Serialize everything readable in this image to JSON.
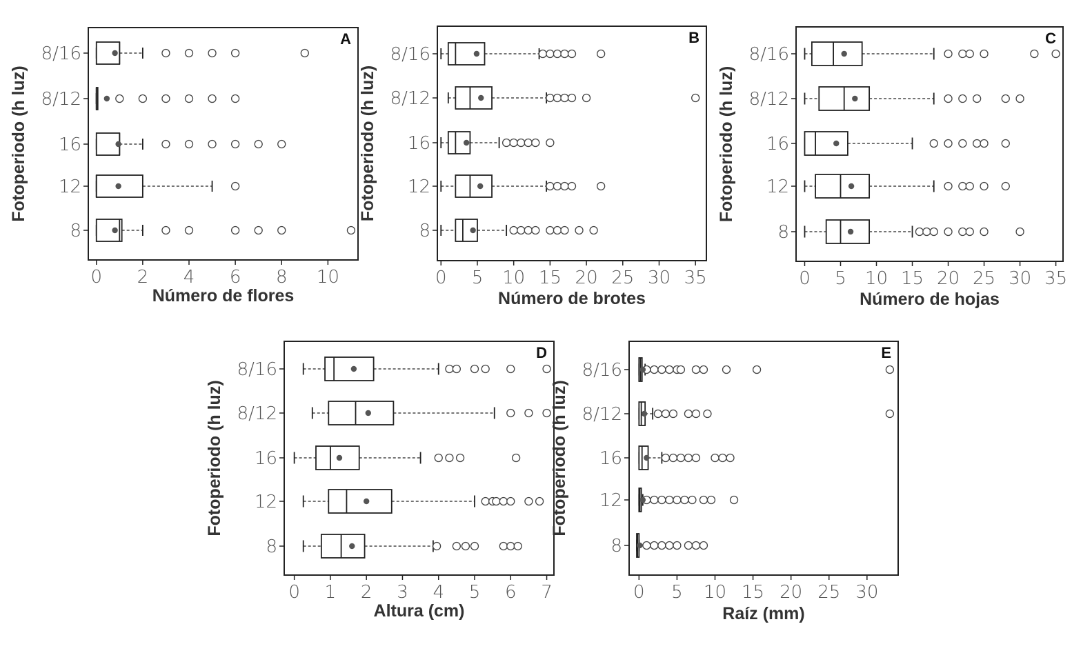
{
  "colors": {
    "frame": "#222222",
    "mean_dot": "#555555",
    "text": "#333333"
  },
  "chart_data": [
    {
      "type": "boxplot",
      "orientation": "horizontal",
      "panel": "A",
      "xlabel": "Número de flores",
      "ylabel": "Fotoperiodo  (h luz)",
      "xlim": [
        -0.35,
        11.3
      ],
      "xticks": [
        0,
        2,
        4,
        6,
        8,
        10
      ],
      "categories": [
        "8/16",
        "8/12",
        "16",
        "12",
        "8"
      ],
      "series": [
        {
          "category": "8/16",
          "whisker_low": 0,
          "q1": 0,
          "median": 1,
          "q3": 1,
          "whisker_high": 2,
          "mean": 0.8,
          "outliers": [
            3,
            4,
            5,
            6,
            9
          ]
        },
        {
          "category": "8/12",
          "whisker_low": 0,
          "q1": 0,
          "median": 0,
          "q3": 0,
          "whisker_high": 0,
          "mean": 0.45,
          "outliers": [
            1,
            2,
            3,
            4,
            5,
            6
          ]
        },
        {
          "category": "16",
          "whisker_low": 0,
          "q1": 0,
          "median": 1,
          "q3": 1,
          "whisker_high": 2,
          "mean": 0.95,
          "outliers": [
            3,
            4,
            5,
            6,
            7,
            8
          ]
        },
        {
          "category": "12",
          "whisker_low": 0,
          "q1": 0,
          "median": 0,
          "q3": 2,
          "whisker_high": 5,
          "mean": 0.95,
          "outliers": [
            6
          ]
        },
        {
          "category": "8",
          "whisker_low": 0,
          "q1": 0,
          "median": 1,
          "q3": 1.1,
          "whisker_high": 2,
          "mean": 0.8,
          "outliers": [
            3,
            4,
            6,
            7,
            8,
            11
          ]
        }
      ]
    },
    {
      "type": "boxplot",
      "orientation": "horizontal",
      "panel": "B",
      "xlabel": "Número de brotes",
      "ylabel": "Fotoperiodo  (h luz)",
      "xlim": [
        -0.5,
        36.5
      ],
      "xticks": [
        0,
        5,
        10,
        15,
        20,
        25,
        30,
        35
      ],
      "categories": [
        "8/16",
        "8/12",
        "16",
        "12",
        "8"
      ],
      "series": [
        {
          "category": "8/16",
          "whisker_low": 0,
          "q1": 1,
          "median": 2,
          "q3": 6,
          "whisker_high": 13.5,
          "mean": 4.9,
          "outliers": [
            14,
            15,
            16,
            17,
            18,
            22
          ]
        },
        {
          "category": "8/12",
          "whisker_low": 1,
          "q1": 2,
          "median": 4,
          "q3": 7,
          "whisker_high": 14.5,
          "mean": 5.5,
          "outliers": [
            15,
            16,
            17,
            18,
            20,
            35
          ]
        },
        {
          "category": "16",
          "whisker_low": 0,
          "q1": 1,
          "median": 2,
          "q3": 4,
          "whisker_high": 8,
          "mean": 3.5,
          "outliers": [
            9,
            10,
            11,
            12,
            13,
            15
          ]
        },
        {
          "category": "12",
          "whisker_low": 0,
          "q1": 2,
          "median": 4,
          "q3": 7,
          "whisker_high": 14.5,
          "mean": 5.4,
          "outliers": [
            15,
            16,
            17,
            18,
            22
          ]
        },
        {
          "category": "8",
          "whisker_low": 0,
          "q1": 2,
          "median": 3,
          "q3": 5,
          "whisker_high": 9,
          "mean": 4.4,
          "outliers": [
            10,
            11,
            12,
            13,
            15,
            16,
            17,
            19,
            21
          ]
        }
      ]
    },
    {
      "type": "boxplot",
      "orientation": "horizontal",
      "panel": "C",
      "xlabel": "Número de hojas",
      "ylabel": "Fotoperiodo  (h luz)",
      "xlim": [
        -1.2,
        36
      ],
      "xticks": [
        0,
        5,
        10,
        15,
        20,
        25,
        30,
        35
      ],
      "categories": [
        "8/16",
        "8/12",
        "16",
        "12",
        "8"
      ],
      "series": [
        {
          "category": "8/16",
          "whisker_low": 0,
          "q1": 1,
          "median": 4,
          "q3": 8,
          "whisker_high": 18,
          "mean": 5.5,
          "outliers": [
            20,
            22,
            23,
            25,
            32,
            35
          ]
        },
        {
          "category": "8/12",
          "whisker_low": 0,
          "q1": 2,
          "median": 5.5,
          "q3": 9,
          "whisker_high": 18,
          "mean": 7,
          "outliers": [
            20,
            22,
            24,
            28,
            30
          ]
        },
        {
          "category": "16",
          "whisker_low": 0,
          "q1": 0,
          "median": 1.5,
          "q3": 6,
          "whisker_high": 15,
          "mean": 4.4,
          "outliers": [
            18,
            20,
            22,
            24,
            25,
            28
          ]
        },
        {
          "category": "12",
          "whisker_low": 0,
          "q1": 1.5,
          "median": 5,
          "q3": 9,
          "whisker_high": 18,
          "mean": 6.5,
          "outliers": [
            20,
            22,
            23,
            25,
            28
          ]
        },
        {
          "category": "8",
          "whisker_low": 0,
          "q1": 3,
          "median": 5,
          "q3": 9,
          "whisker_high": 15,
          "mean": 6.4,
          "outliers": [
            16,
            17,
            18,
            20,
            22,
            23,
            25,
            30
          ]
        }
      ]
    },
    {
      "type": "boxplot",
      "orientation": "horizontal",
      "panel": "D",
      "xlabel": "Altura (cm)",
      "ylabel": "Fotoperiodo  (h luz)",
      "xlim": [
        -0.28,
        7.2
      ],
      "xticks": [
        0,
        1,
        2,
        3,
        4,
        5,
        6,
        7
      ],
      "categories": [
        "8/16",
        "8/12",
        "16",
        "12",
        "8"
      ],
      "series": [
        {
          "category": "8/16",
          "whisker_low": 0.25,
          "q1": 0.85,
          "median": 1.1,
          "q3": 2.2,
          "whisker_high": 4,
          "mean": 1.65,
          "outliers": [
            4.3,
            4.5,
            5,
            5.3,
            6,
            7
          ]
        },
        {
          "category": "8/12",
          "whisker_low": 0.5,
          "q1": 0.95,
          "median": 1.7,
          "q3": 2.75,
          "whisker_high": 5.55,
          "mean": 2.05,
          "outliers": [
            6,
            6.5,
            7
          ]
        },
        {
          "category": "16",
          "whisker_low": 0,
          "q1": 0.6,
          "median": 1,
          "q3": 1.8,
          "whisker_high": 3.5,
          "mean": 1.25,
          "outliers": [
            4,
            4.3,
            4.6,
            6.15
          ]
        },
        {
          "category": "12",
          "whisker_low": 0.25,
          "q1": 0.95,
          "median": 1.45,
          "q3": 2.7,
          "whisker_high": 5,
          "mean": 2,
          "outliers": [
            5.3,
            5.5,
            5.6,
            5.8,
            6,
            6.5,
            6.8
          ]
        },
        {
          "category": "8",
          "whisker_low": 0.25,
          "q1": 0.75,
          "median": 1.3,
          "q3": 1.95,
          "whisker_high": 3.85,
          "mean": 1.6,
          "outliers": [
            3.95,
            4.5,
            4.75,
            5,
            5.8,
            6,
            6.2
          ]
        }
      ]
    },
    {
      "type": "boxplot",
      "orientation": "horizontal",
      "panel": "E",
      "xlabel": "Raíz (mm)",
      "ylabel": "Fotoperiodo  (h luz)",
      "xlim": [
        -1.3,
        34.1
      ],
      "xticks": [
        0,
        5,
        10,
        15,
        20,
        25,
        30
      ],
      "categories": [
        "8/16",
        "8/12",
        "16",
        "12",
        "8"
      ],
      "series": [
        {
          "category": "8/16",
          "whisker_low": 0,
          "q1": 0,
          "median": 0.2,
          "q3": 0.4,
          "whisker_high": 0.8,
          "mean": 0.5,
          "outliers": [
            1,
            2,
            3,
            4,
            5,
            5.5,
            7.5,
            8.5,
            11.5,
            15.5,
            33
          ]
        },
        {
          "category": "8/12",
          "whisker_low": 0,
          "q1": 0,
          "median": 0.3,
          "q3": 0.8,
          "whisker_high": 1.8,
          "mean": 0.7,
          "outliers": [
            2.5,
            3.5,
            4.5,
            6.5,
            7.5,
            9,
            33
          ]
        },
        {
          "category": "16",
          "whisker_low": 0,
          "q1": 0,
          "median": 0.4,
          "q3": 1.2,
          "whisker_high": 3,
          "mean": 1,
          "outliers": [
            3.5,
            4.5,
            5.5,
            6.5,
            7.5,
            10,
            11,
            12
          ]
        },
        {
          "category": "12",
          "whisker_low": 0,
          "q1": 0,
          "median": 0.1,
          "q3": 0.3,
          "whisker_high": 0.5,
          "mean": 0.5,
          "outliers": [
            1,
            2,
            3,
            4,
            5,
            6,
            7,
            8.5,
            9.5,
            12.5
          ]
        },
        {
          "category": "8",
          "whisker_low": -0.3,
          "q1": -0.3,
          "median": -0.2,
          "q3": 0,
          "whisker_high": 0,
          "mean": 0.1,
          "outliers": [
            1,
            2,
            3,
            4,
            5,
            6.5,
            7.5,
            8.5
          ]
        }
      ]
    }
  ]
}
